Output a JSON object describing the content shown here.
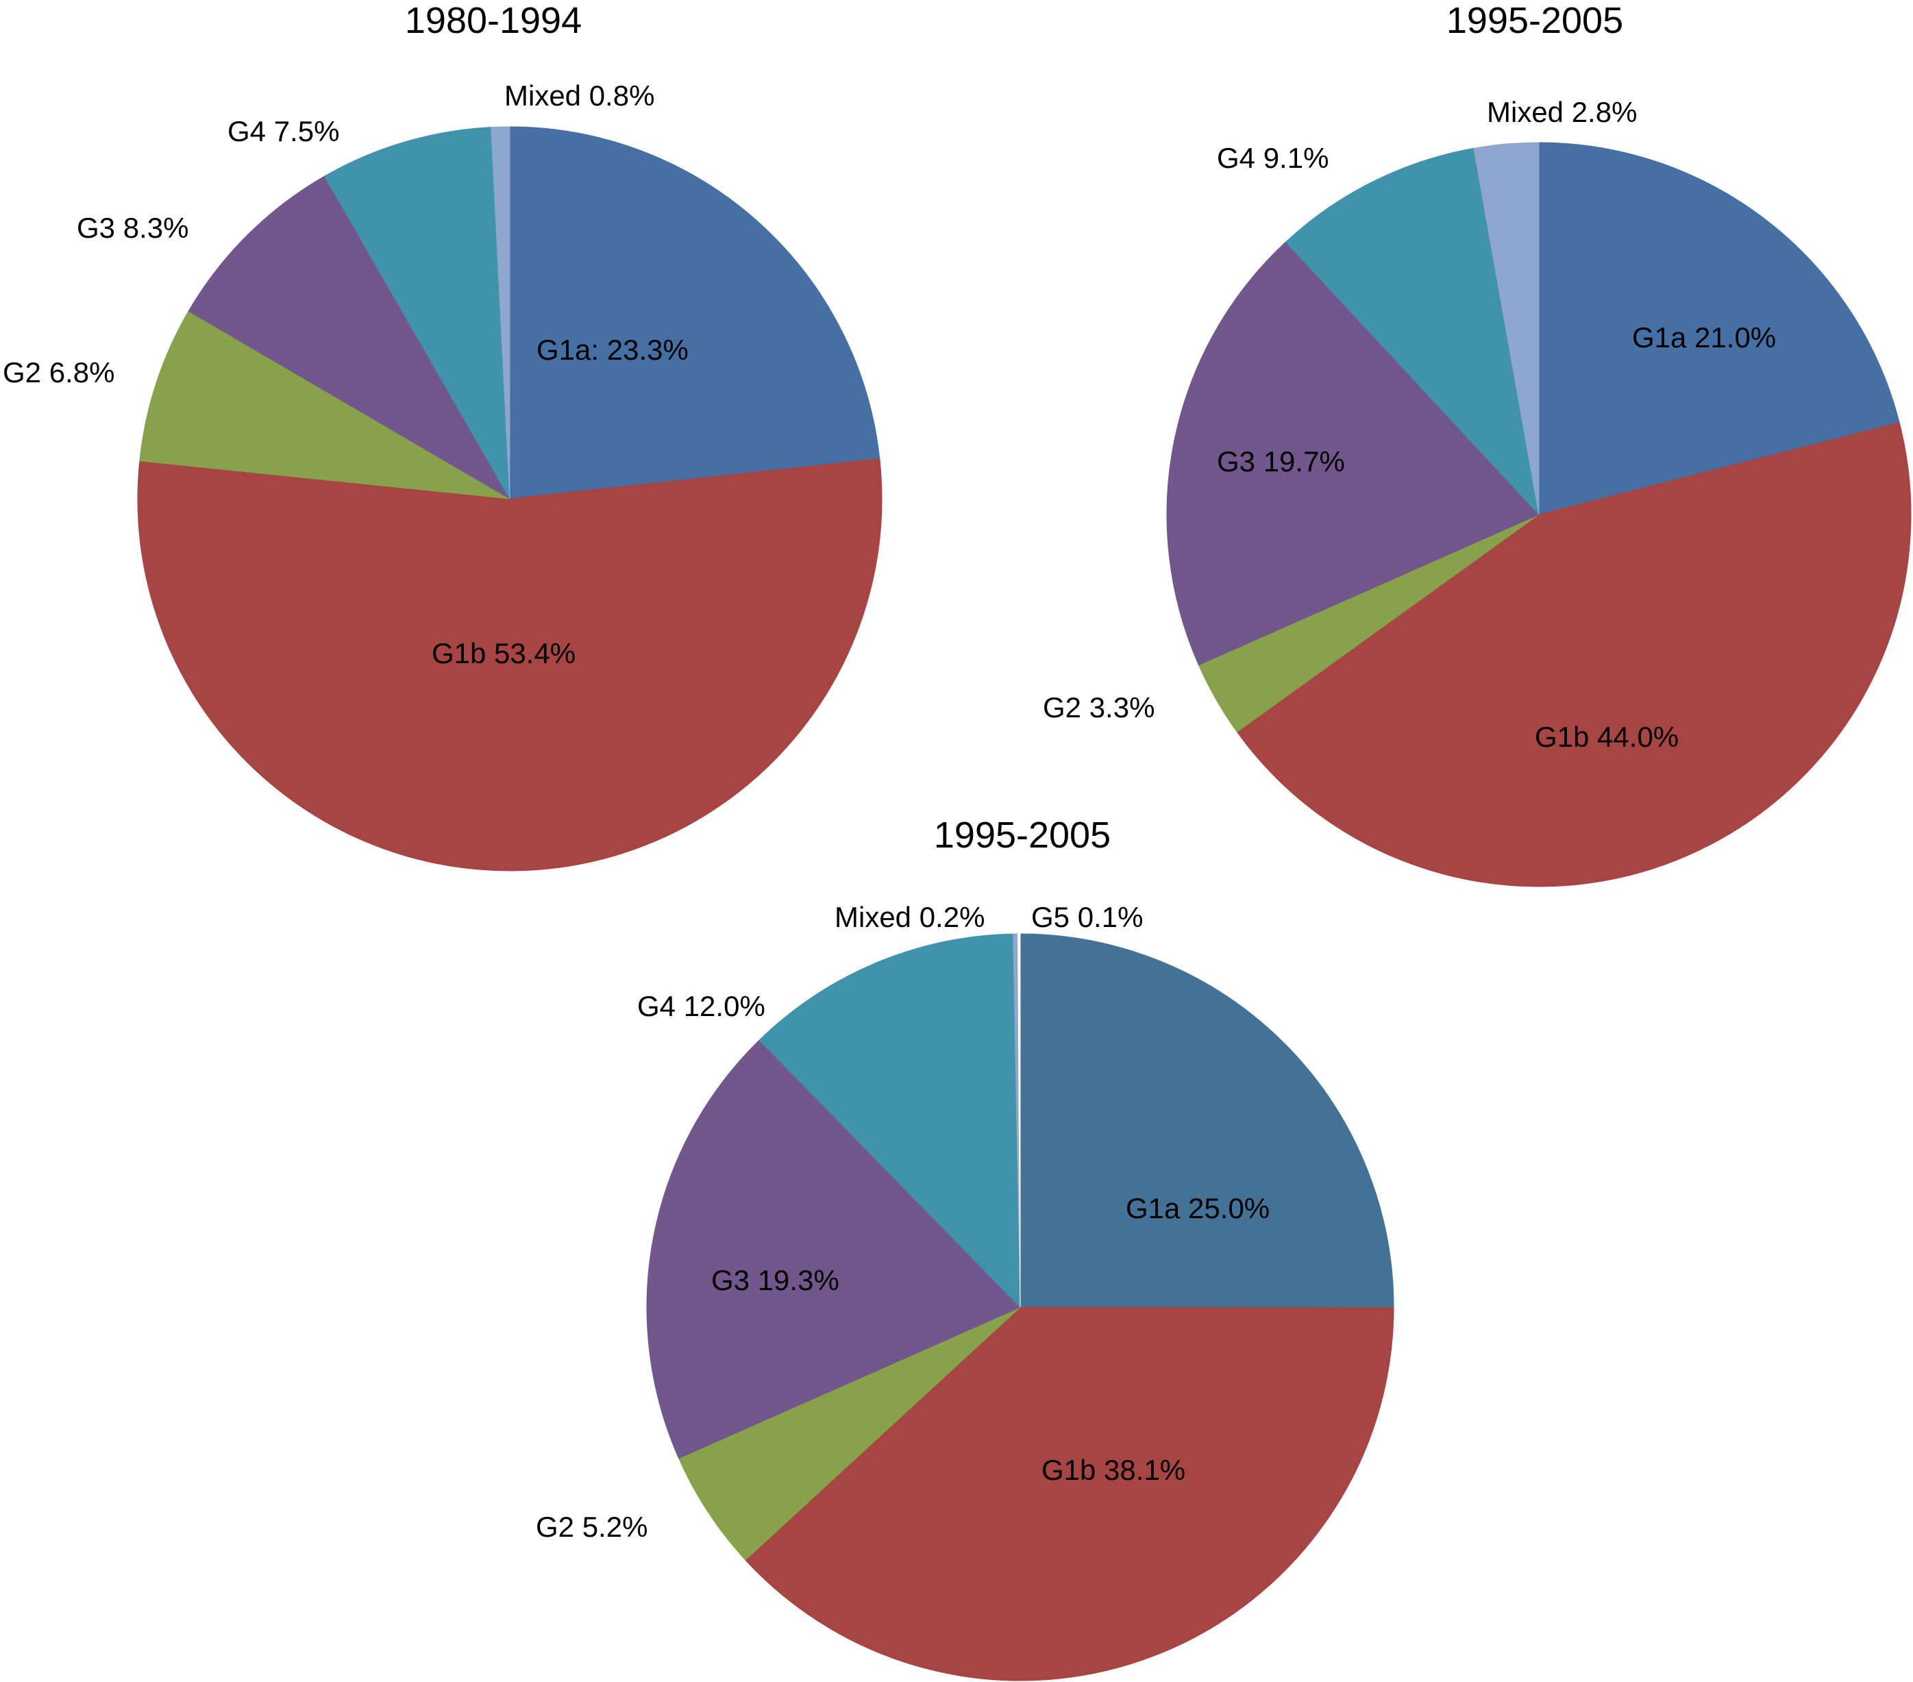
{
  "chart_data": [
    {
      "type": "pie",
      "title": "1980-1994",
      "slices": [
        {
          "name": "G1a",
          "label": "G1a: 23.3%",
          "value": 23.3,
          "color": "#4670a4"
        },
        {
          "name": "G1b",
          "label": "G1b 53.4%",
          "value": 53.4,
          "color": "#a64543"
        },
        {
          "name": "G2",
          "label": "G2 6.8%",
          "value": 6.8,
          "color": "#88a24c"
        },
        {
          "name": "G3",
          "label": "G3 8.3%",
          "value": 8.3,
          "color": "#71578c"
        },
        {
          "name": "G4",
          "label": "G4 7.5%",
          "value": 7.5,
          "color": "#4193ab"
        },
        {
          "name": "Mixed",
          "label": "Mixed 0.8%",
          "value": 0.8,
          "color": "#8fa7cf"
        }
      ]
    },
    {
      "type": "pie",
      "title": "1995-2005",
      "slices": [
        {
          "name": "G1a",
          "label": "G1a 21.0%",
          "value": 21.0,
          "color": "#4670a4"
        },
        {
          "name": "G1b",
          "label": "G1b 44.0%",
          "value": 44.0,
          "color": "#a64543"
        },
        {
          "name": "G2",
          "label": "G2 3.3%",
          "value": 3.3,
          "color": "#88a24c"
        },
        {
          "name": "G3",
          "label": "G3 19.7%",
          "value": 19.7,
          "color": "#71578c"
        },
        {
          "name": "G4",
          "label": "G4 9.1%",
          "value": 9.1,
          "color": "#4193ab"
        },
        {
          "name": "Mixed",
          "label": "Mixed 2.8%",
          "value": 2.8,
          "color": "#8fa7cf"
        }
      ]
    },
    {
      "type": "pie",
      "title": "1995-2005",
      "slices": [
        {
          "name": "G1a",
          "label": "G1a 25.0%",
          "value": 25.0,
          "color": "#437296"
        },
        {
          "name": "G1b",
          "label": "G1b 38.1%",
          "value": 38.1,
          "color": "#a64543"
        },
        {
          "name": "G2",
          "label": "G2 5.2%",
          "value": 5.2,
          "color": "#88a24c"
        },
        {
          "name": "G3",
          "label": "G3 19.3%",
          "value": 19.3,
          "color": "#71578c"
        },
        {
          "name": "G4",
          "label": "G4 12.0%",
          "value": 12.0,
          "color": "#4193ab"
        },
        {
          "name": "Mixed",
          "label": "Mixed 0.2%",
          "value": 0.2,
          "color": "#8fa7cf"
        },
        {
          "name": "G5",
          "label": "G5 0.1%",
          "value": 0.1,
          "color": "#ffffff"
        }
      ]
    }
  ]
}
